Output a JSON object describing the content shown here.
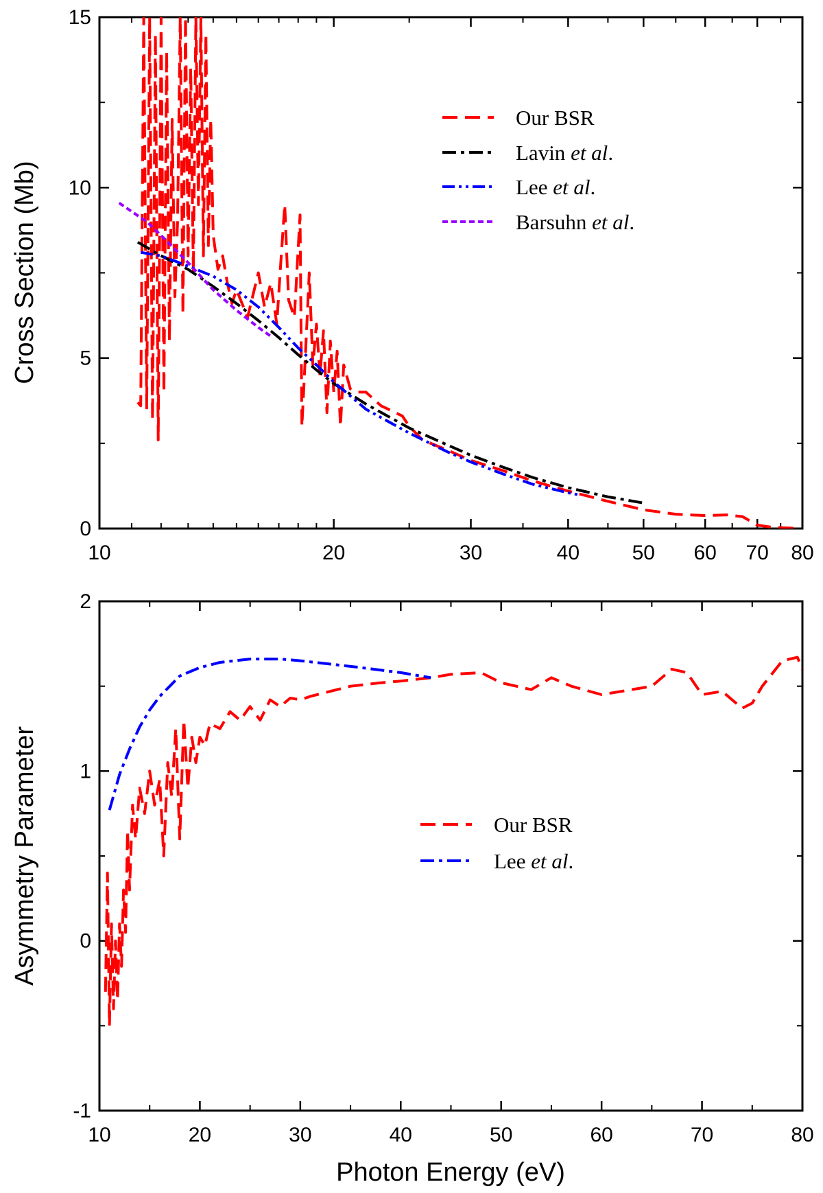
{
  "chart_data": [
    {
      "type": "line",
      "panel": "top",
      "title": "",
      "xlabel": "",
      "ylabel": "Cross Section (Mb)",
      "xscale": "log",
      "xlim": [
        10,
        80
      ],
      "ylim": [
        0,
        15
      ],
      "x_ticks": [
        10,
        20,
        30,
        40,
        50,
        60,
        70,
        80
      ],
      "y_ticks": [
        0,
        5,
        10,
        15
      ],
      "grid": false,
      "legend_position": "top-right",
      "series": [
        {
          "name": "Our BSR",
          "style": "dash",
          "color": "#ff0000",
          "x": [
            11.2,
            11.3,
            11.4,
            11.5,
            11.6,
            11.7,
            11.8,
            11.9,
            12.0,
            12.1,
            12.2,
            12.3,
            12.4,
            12.5,
            12.6,
            12.7,
            12.8,
            12.9,
            13.0,
            13.1,
            13.2,
            13.3,
            13.4,
            13.5,
            13.6,
            13.7,
            13.8,
            13.9,
            14.0,
            14.2,
            14.4,
            14.6,
            14.8,
            15.0,
            15.5,
            16.0,
            16.3,
            16.6,
            16.9,
            17.1,
            17.3,
            17.5,
            17.8,
            18.1,
            18.2,
            18.4,
            18.6,
            18.8,
            19.0,
            19.2,
            19.4,
            19.6,
            19.8,
            20.0,
            20.2,
            20.4,
            20.6,
            21.0,
            21.5,
            22.0,
            23.0,
            24.0,
            24.5,
            25.0,
            26.0,
            28.0,
            30.0,
            33.0,
            36.0,
            40.0,
            45.0,
            50.0,
            55.0,
            60.0,
            64.0,
            67.0,
            70.0,
            73.0,
            76.0,
            78.0
          ],
          "values": [
            3.7,
            3.6,
            15.0,
            3.5,
            15.0,
            3.2,
            14.5,
            2.6,
            15.0,
            4.0,
            14.0,
            5.5,
            12.0,
            6.8,
            9.0,
            15.0,
            6.3,
            15.0,
            8.0,
            13.5,
            7.5,
            15.0,
            9.5,
            15.0,
            8.0,
            14.5,
            8.3,
            12.0,
            8.6,
            7.6,
            8.0,
            7.2,
            6.6,
            7.0,
            6.2,
            7.5,
            6.5,
            7.2,
            6.0,
            7.8,
            9.5,
            6.7,
            6.2,
            9.2,
            3.0,
            5.2,
            7.5,
            4.8,
            6.0,
            4.5,
            5.8,
            3.4,
            5.5,
            4.0,
            5.2,
            3.0,
            4.8,
            4.1,
            4.0,
            4.0,
            3.6,
            3.4,
            3.3,
            3.0,
            2.6,
            2.3,
            2.0,
            1.7,
            1.4,
            1.1,
            0.8,
            0.55,
            0.42,
            0.38,
            0.4,
            0.35,
            0.1,
            0.04,
            0.02,
            0.01
          ]
        },
        {
          "name": "Lavin et al.",
          "style": "dash-dot",
          "color": "#000000",
          "x": [
            11.2,
            12.0,
            13.0,
            14.0,
            15.0,
            16.0,
            17.0,
            18.0,
            19.0,
            20.0,
            22.0,
            25.0,
            28.0,
            30.0,
            33.0,
            36.0,
            40.0,
            45.0,
            50.0
          ],
          "values": [
            8.4,
            8.0,
            7.6,
            7.1,
            6.6,
            6.1,
            5.6,
            5.1,
            4.65,
            4.25,
            3.65,
            2.95,
            2.45,
            2.15,
            1.8,
            1.5,
            1.2,
            0.93,
            0.75
          ]
        },
        {
          "name": "Lee et al.",
          "style": "dash-dot-dot",
          "color": "#0000ff",
          "x": [
            11.3,
            12.0,
            13.0,
            14.0,
            15.0,
            16.0,
            17.0,
            18.0,
            19.0,
            20.0,
            22.0,
            25.0,
            28.0,
            30.0,
            33.0,
            36.0,
            40.0,
            41.5
          ],
          "values": [
            8.1,
            8.0,
            7.7,
            7.4,
            7.0,
            6.5,
            5.9,
            5.3,
            4.8,
            4.3,
            3.5,
            2.8,
            2.25,
            1.95,
            1.6,
            1.3,
            1.05,
            0.98
          ]
        },
        {
          "name": "Barsuhn et al.",
          "style": "short-dash",
          "color": "#9900ff",
          "x": [
            10.6,
            11.0,
            11.5,
            12.0,
            13.0,
            14.0,
            15.0,
            16.0,
            16.7
          ],
          "values": [
            9.55,
            9.3,
            9.0,
            8.6,
            7.8,
            7.0,
            6.4,
            5.9,
            5.6
          ]
        }
      ]
    },
    {
      "type": "line",
      "panel": "bottom",
      "title": "",
      "xlabel": "Photon Energy (eV)",
      "ylabel": "Asymmetry Parameter",
      "xscale": "linear",
      "xlim": [
        10,
        80
      ],
      "ylim": [
        -1,
        2
      ],
      "x_ticks": [
        10,
        20,
        30,
        40,
        50,
        60,
        70,
        80
      ],
      "y_ticks": [
        -1,
        0,
        1,
        2
      ],
      "grid": false,
      "legend_position": "center-right",
      "series": [
        {
          "name": "Our BSR",
          "style": "dash",
          "color": "#ff0000",
          "x": [
            10.6,
            10.8,
            11.0,
            11.2,
            11.4,
            11.6,
            11.8,
            12.0,
            12.2,
            12.4,
            12.6,
            12.8,
            13.0,
            13.3,
            13.6,
            14.0,
            14.5,
            15.0,
            15.5,
            16.0,
            16.4,
            16.8,
            17.2,
            17.6,
            18.0,
            18.4,
            18.8,
            19.2,
            19.6,
            20.0,
            20.5,
            21.0,
            22.0,
            23.0,
            24.0,
            25.0,
            26.0,
            27.0,
            28.0,
            29.0,
            30.0,
            31.0,
            33.0,
            35.0,
            38.0,
            40.0,
            43.0,
            45.0,
            48.0,
            50.0,
            53.0,
            55.0,
            57.0,
            60.0,
            62.0,
            65.0,
            67.0,
            68.5,
            70.0,
            72.0,
            74.0,
            75.0,
            76.0,
            78.0,
            79.5,
            80.0
          ],
          "values": [
            -0.3,
            0.4,
            -0.5,
            0.1,
            -0.4,
            0.0,
            -0.35,
            0.1,
            -0.15,
            0.3,
            0.05,
            0.65,
            0.3,
            0.8,
            0.6,
            0.9,
            0.75,
            1.0,
            0.8,
            0.95,
            0.5,
            1.05,
            0.85,
            1.25,
            0.6,
            1.3,
            0.9,
            1.2,
            1.05,
            1.2,
            1.15,
            1.28,
            1.25,
            1.35,
            1.3,
            1.38,
            1.3,
            1.42,
            1.38,
            1.43,
            1.42,
            1.44,
            1.47,
            1.5,
            1.52,
            1.53,
            1.55,
            1.57,
            1.58,
            1.52,
            1.48,
            1.55,
            1.5,
            1.45,
            1.47,
            1.5,
            1.6,
            1.58,
            1.45,
            1.47,
            1.37,
            1.4,
            1.5,
            1.65,
            1.67,
            1.6
          ]
        },
        {
          "name": "Lee et al.",
          "style": "dash-dot",
          "color": "#0000ff",
          "x": [
            11.0,
            12.0,
            13.0,
            14.0,
            15.0,
            16.0,
            17.0,
            18.0,
            20.0,
            22.0,
            25.0,
            28.0,
            30.0,
            33.0,
            36.0,
            40.0,
            43.0
          ],
          "values": [
            0.77,
            0.98,
            1.13,
            1.26,
            1.36,
            1.44,
            1.5,
            1.56,
            1.61,
            1.64,
            1.66,
            1.66,
            1.65,
            1.63,
            1.61,
            1.58,
            1.55
          ]
        }
      ]
    }
  ]
}
